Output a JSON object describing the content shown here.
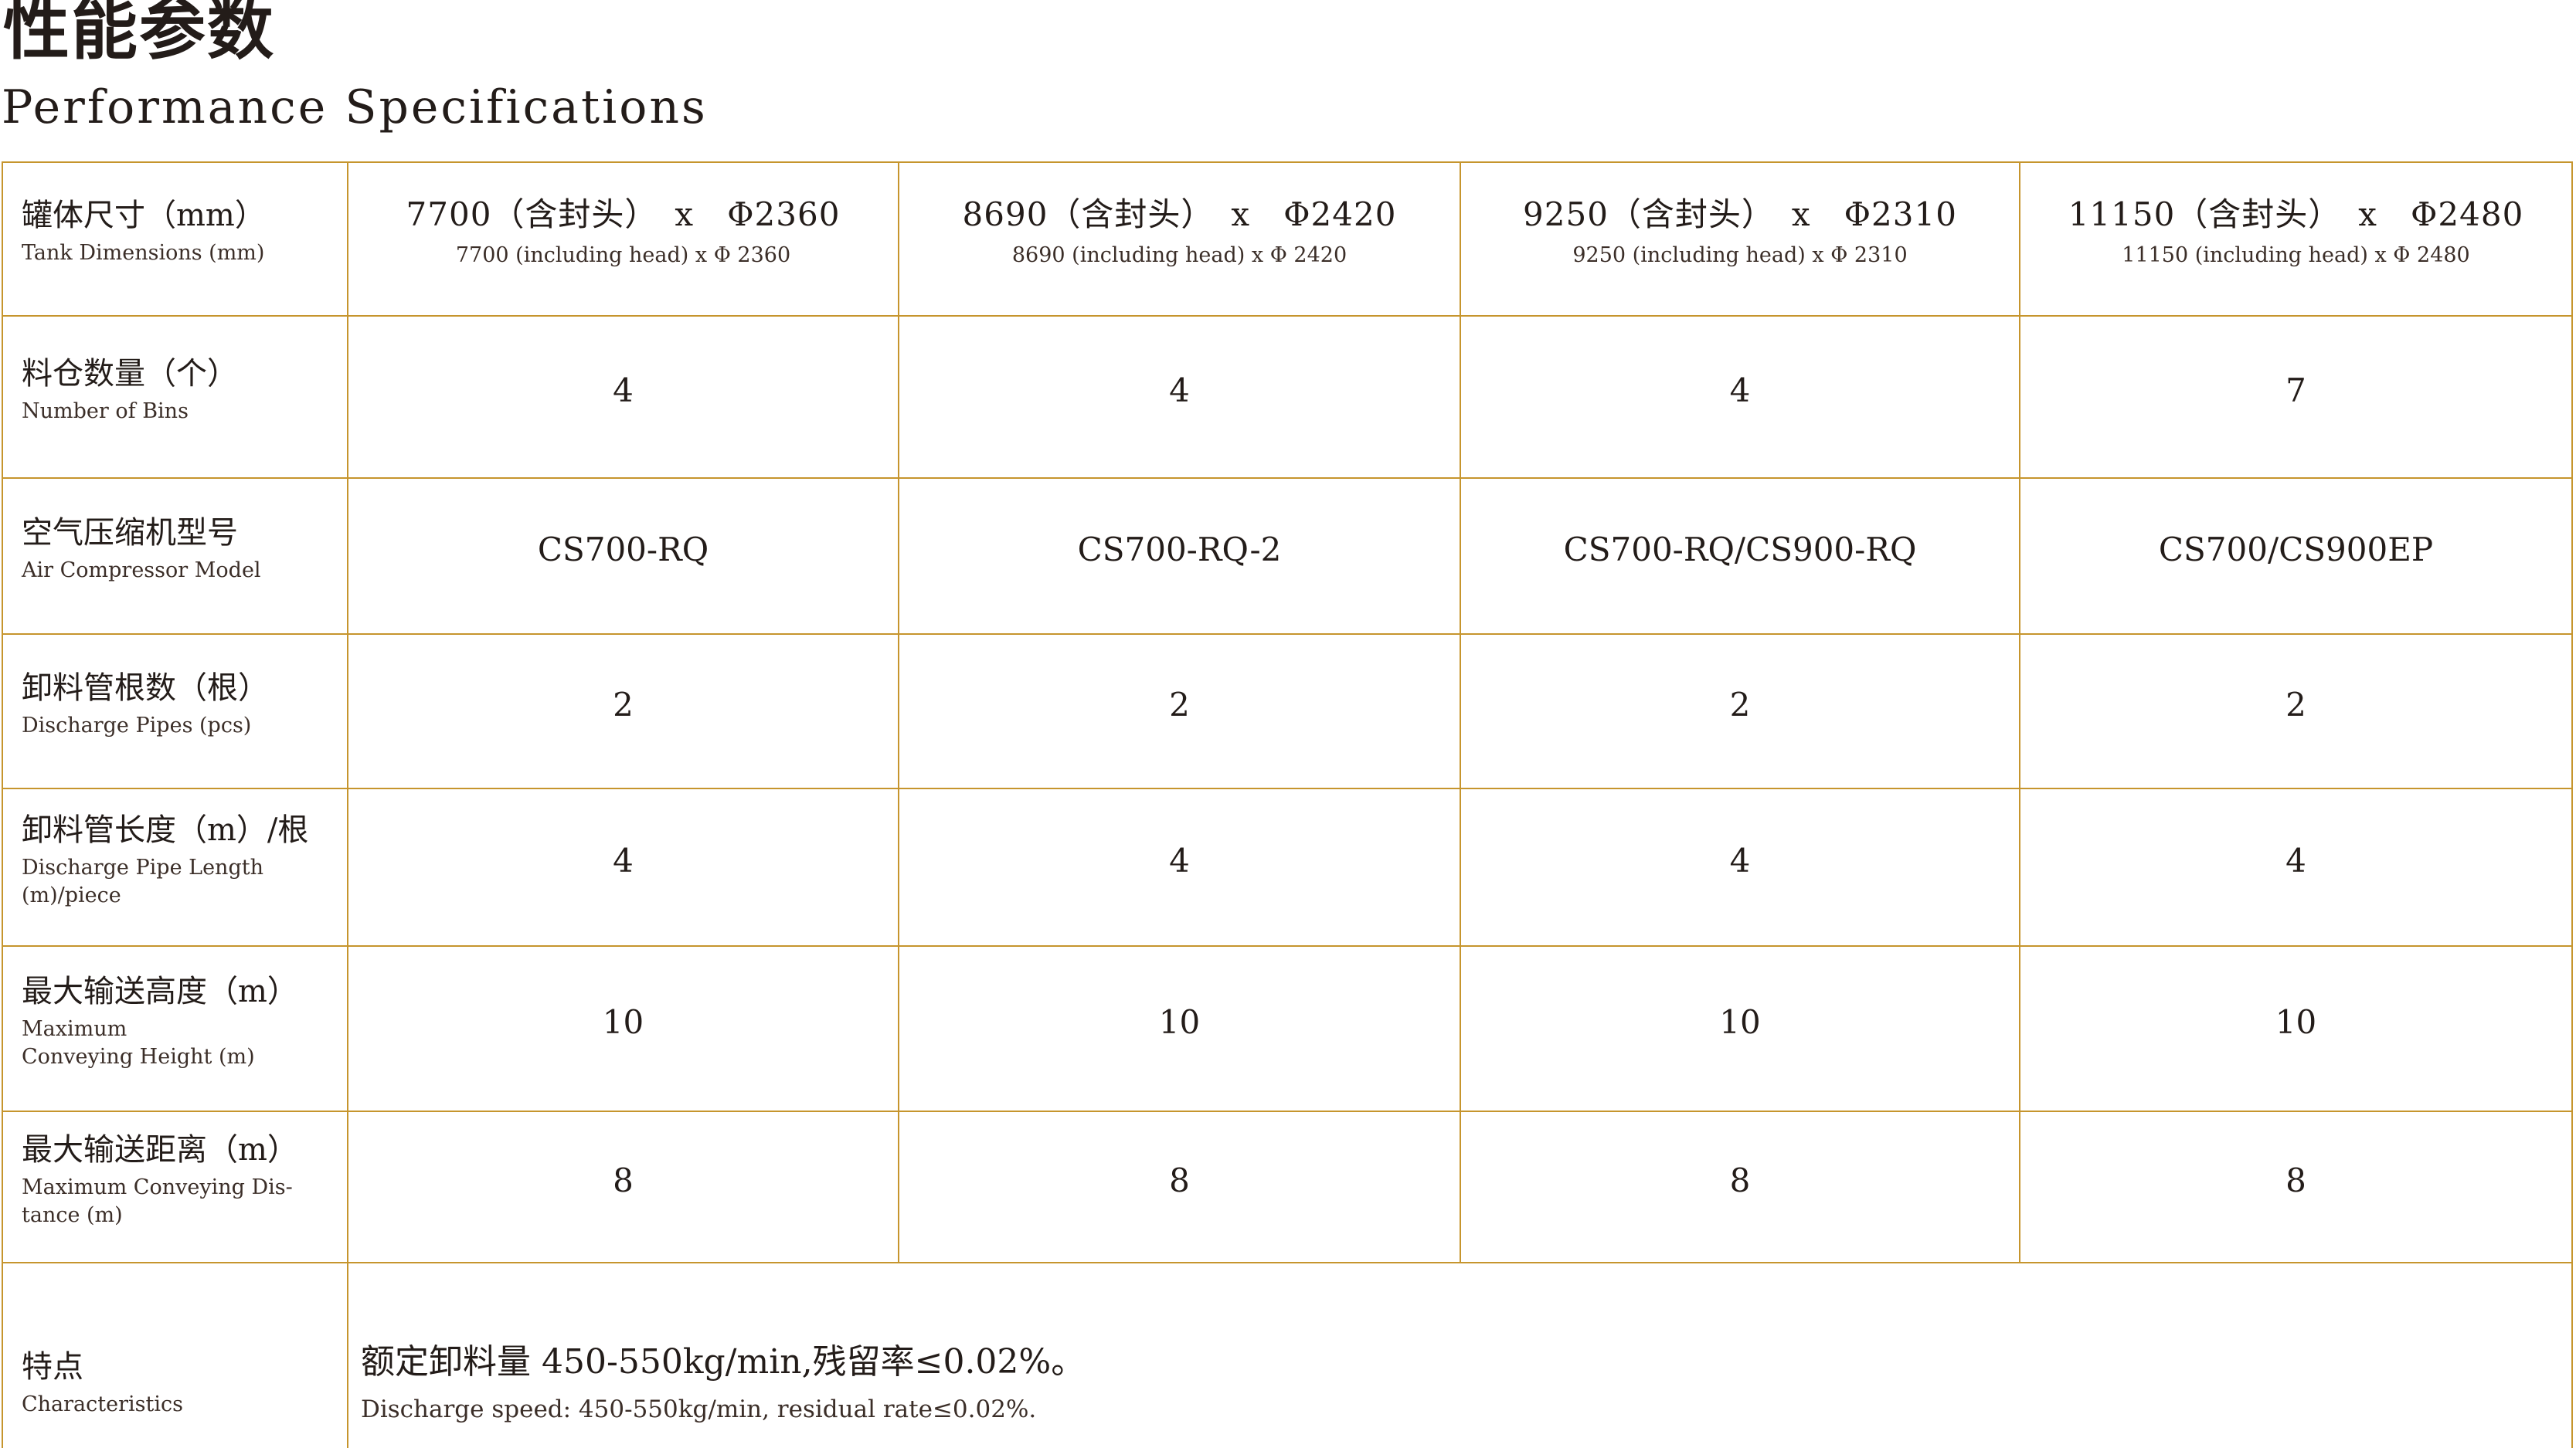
{
  "page": {
    "title_zh": "性能参数",
    "title_en": "Performance Specifications"
  },
  "colors": {
    "border_gold": "#c6952d",
    "text_main": "#231c19",
    "text_sub": "#3b2e28"
  },
  "table": {
    "rows": [
      {
        "label_zh": "罐体尺寸（mm）",
        "label_en": "Tank Dimensions (mm)",
        "cells": [
          {
            "zh": "7700（含封头）　x　Φ2360",
            "en": "7700 (including head) x Φ 2360"
          },
          {
            "zh": "8690（含封头）　x　Φ2420",
            "en": "8690 (including head) x Φ 2420"
          },
          {
            "zh": "9250（含封头）　x　Φ2310",
            "en": "9250 (including head) x Φ 2310"
          },
          {
            "zh": "11150（含封头）　x　Φ2480",
            "en": "11150 (including head) x Φ 2480"
          }
        ]
      },
      {
        "label_zh": "料仓数量（个）",
        "label_en": "Number of Bins",
        "values": [
          "4",
          "4",
          "4",
          "7"
        ]
      },
      {
        "label_zh": "空气压缩机型号",
        "label_en": "Air Compressor Model",
        "values": [
          "CS700-RQ",
          "CS700-RQ-2",
          "CS700-RQ/CS900-RQ",
          "CS700/CS900EP"
        ]
      },
      {
        "label_zh": "卸料管根数（根）",
        "label_en": "Discharge Pipes (pcs)",
        "values": [
          "2",
          "2",
          "2",
          "2"
        ]
      },
      {
        "label_zh": "卸料管长度（m）/根",
        "label_en": "Discharge Pipe Length\n(m)/piece",
        "values": [
          "4",
          "4",
          "4",
          "4"
        ]
      },
      {
        "label_zh": "最大输送高度（m）",
        "label_en": "Maximum\nConveying Height (m)",
        "values": [
          "10",
          "10",
          "10",
          "10"
        ]
      },
      {
        "label_zh": "最大输送距离（m）",
        "label_en": "Maximum Conveying Dis-\ntance (m)",
        "values": [
          "8",
          "8",
          "8",
          "8"
        ]
      },
      {
        "label_zh": "特点",
        "label_en": "Characteristics",
        "feature_zh": "额定卸料量 450-550kg/min,残留率≤0.02%。",
        "feature_en": "Discharge speed: 450-550kg/min, residual rate≤0.02%."
      }
    ]
  }
}
